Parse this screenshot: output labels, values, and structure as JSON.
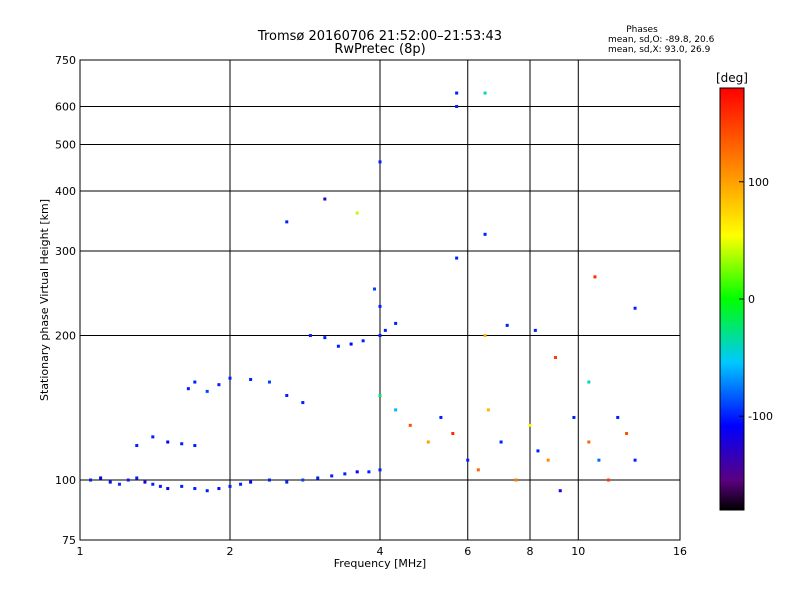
{
  "chart_data": {
    "type": "scatter",
    "title": "Tromsø 20160706 21:52:00–21:53:43",
    "subtitle": "RwPretec (8p)",
    "xlabel": "Frequency [MHz]",
    "ylabel": "Stationary phase Virtual Height [km]",
    "x_scale": "log",
    "y_scale": "log",
    "xlim": [
      1,
      16
    ],
    "ylim": [
      75,
      750
    ],
    "x_ticks": [
      1,
      2,
      4,
      6,
      8,
      10,
      16
    ],
    "x_tick_labels": [
      "1",
      "2",
      "4",
      "6",
      "8",
      "10",
      "16"
    ],
    "y_ticks": [
      75,
      100,
      200,
      300,
      400,
      500,
      600,
      750
    ],
    "y_tick_labels": [
      "75",
      "100",
      "200",
      "300",
      "400",
      "500",
      "600",
      "750"
    ],
    "grid": true,
    "phases_box": {
      "title": "Phases",
      "line1": "mean, sd,O: -89.8, 20.6",
      "line2": "mean, sd,X:  93.0, 26.9"
    },
    "colorbar": {
      "label": "[deg]",
      "range": [
        -180,
        180
      ],
      "ticks": [
        100,
        0,
        -100
      ],
      "tick_labels": [
        "100",
        "0",
        "-100"
      ],
      "colormap": "rainbow"
    },
    "series": [
      {
        "values": [
          [
            1.05,
            100,
            -100
          ],
          [
            1.1,
            101,
            -110
          ],
          [
            1.15,
            99,
            -105
          ],
          [
            1.2,
            98,
            -95
          ],
          [
            1.25,
            100,
            -100
          ],
          [
            1.3,
            101,
            -100
          ],
          [
            1.35,
            99,
            -120
          ],
          [
            1.4,
            98,
            -100
          ],
          [
            1.45,
            97,
            -100
          ],
          [
            1.5,
            96,
            -110
          ],
          [
            1.6,
            97,
            -100
          ],
          [
            1.7,
            96,
            -100
          ],
          [
            1.8,
            95,
            -100
          ],
          [
            1.9,
            96,
            -105
          ],
          [
            2.0,
            97,
            -100
          ],
          [
            2.1,
            98,
            -100
          ],
          [
            2.2,
            99,
            -110
          ],
          [
            2.4,
            100,
            -100
          ],
          [
            2.6,
            99,
            -100
          ],
          [
            2.8,
            100,
            -90
          ],
          [
            3.0,
            101,
            -100
          ],
          [
            3.2,
            102,
            -100
          ],
          [
            3.4,
            103,
            -100
          ],
          [
            3.6,
            104,
            -110
          ],
          [
            3.8,
            104,
            -100
          ],
          [
            4.0,
            105,
            -100
          ],
          [
            1.3,
            118,
            -100
          ],
          [
            1.4,
            123,
            -100
          ],
          [
            1.5,
            120,
            -110
          ],
          [
            1.6,
            119,
            -100
          ],
          [
            1.7,
            118,
            -100
          ],
          [
            1.65,
            155,
            -100
          ],
          [
            1.7,
            160,
            -100
          ],
          [
            1.8,
            153,
            -90
          ],
          [
            1.9,
            158,
            -100
          ],
          [
            2.0,
            163,
            -100
          ],
          [
            2.2,
            162,
            -100
          ],
          [
            2.4,
            160,
            -90
          ],
          [
            2.6,
            150,
            -100
          ],
          [
            2.8,
            145,
            -100
          ],
          [
            2.9,
            200,
            -100
          ],
          [
            3.1,
            198,
            -100
          ],
          [
            3.3,
            190,
            -100
          ],
          [
            3.5,
            192,
            -110
          ],
          [
            3.7,
            195,
            -100
          ],
          [
            4.0,
            200,
            -100
          ],
          [
            4.1,
            205,
            -100
          ],
          [
            4.3,
            212,
            -100
          ],
          [
            4.0,
            230,
            -100
          ],
          [
            3.9,
            250,
            -90
          ],
          [
            4.0,
            460,
            -100
          ],
          [
            3.1,
            385,
            -130
          ],
          [
            2.6,
            345,
            -100
          ],
          [
            3.6,
            360,
            40
          ],
          [
            5.7,
            640,
            -100
          ],
          [
            5.7,
            600,
            -100
          ],
          [
            6.5,
            640,
            -40
          ],
          [
            5.7,
            290,
            -100
          ],
          [
            6.5,
            325,
            -100
          ],
          [
            4.0,
            150,
            -20
          ],
          [
            4.3,
            140,
            -60
          ],
          [
            4.6,
            130,
            140
          ],
          [
            5.0,
            120,
            100
          ],
          [
            5.3,
            135,
            -100
          ],
          [
            5.6,
            125,
            160
          ],
          [
            6.0,
            110,
            -100
          ],
          [
            6.3,
            105,
            130
          ],
          [
            6.6,
            140,
            90
          ],
          [
            7.0,
            120,
            -100
          ],
          [
            7.5,
            100,
            120
          ],
          [
            8.0,
            130,
            60
          ],
          [
            8.3,
            115,
            -100
          ],
          [
            8.7,
            110,
            110
          ],
          [
            9.2,
            95,
            -120
          ],
          [
            9.8,
            135,
            -100
          ],
          [
            10.5,
            120,
            130
          ],
          [
            11.0,
            110,
            -80
          ],
          [
            11.5,
            100,
            150
          ],
          [
            12.0,
            135,
            -100
          ],
          [
            12.5,
            125,
            140
          ],
          [
            13.0,
            110,
            -100
          ],
          [
            10.8,
            265,
            160
          ],
          [
            13.0,
            228,
            -100
          ],
          [
            6.5,
            200,
            90
          ],
          [
            7.2,
            210,
            -100
          ],
          [
            8.2,
            205,
            -100
          ],
          [
            9.0,
            180,
            150
          ],
          [
            10.5,
            160,
            -40
          ]
        ]
      }
    ]
  }
}
